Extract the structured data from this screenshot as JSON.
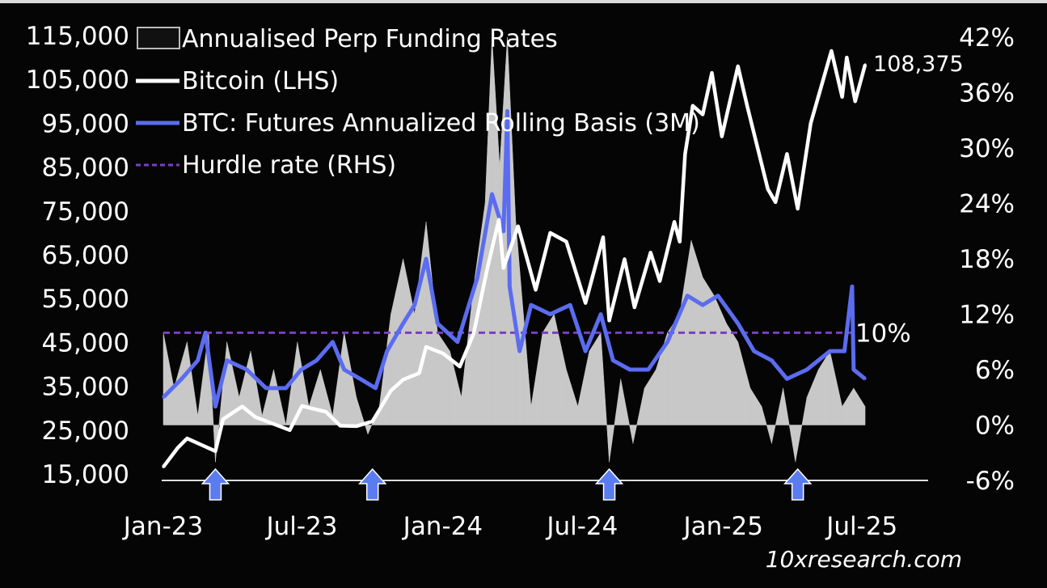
{
  "chart_data": {
    "type": "line",
    "title": "",
    "legend": {
      "placement": "top-left",
      "items": [
        {
          "label": "Annualised Perp Funding Rates",
          "color": "#c8c8c8",
          "style": "area"
        },
        {
          "label": "Bitcoin (LHS)",
          "color": "#ffffff",
          "style": "line"
        },
        {
          "label": "BTC: Futures Annualized Rolling Basis (3M)",
          "color": "#5b6cf0",
          "style": "line"
        },
        {
          "label": "Hurdle rate (RHS)",
          "color": "#7a3fc0",
          "style": "dashed"
        }
      ]
    },
    "x_ticks": [
      {
        "date": "2023-01-01",
        "label": "Jan-23"
      },
      {
        "date": "2023-07-01",
        "label": "Jul-23"
      },
      {
        "date": "2024-01-01",
        "label": "Jan-24"
      },
      {
        "date": "2024-07-01",
        "label": "Jul-24"
      },
      {
        "date": "2025-01-01",
        "label": "Jan-25"
      },
      {
        "date": "2025-07-01",
        "label": "Jul-25"
      }
    ],
    "y_left": {
      "ylim": [
        15000,
        115000
      ],
      "ticks": [
        "115,000",
        "105,000",
        "95,000",
        "85,000",
        "75,000",
        "65,000",
        "55,000",
        "45,000",
        "35,000",
        "25,000",
        "15,000"
      ]
    },
    "y_right": {
      "ylim": [
        -6,
        42
      ],
      "unit": "%",
      "ticks": [
        "42%",
        "36%",
        "30%",
        "24%",
        "18%",
        "12%",
        "6%",
        "0%",
        "-6%"
      ]
    },
    "grid": false,
    "series": [
      {
        "name": "Bitcoin (LHS)",
        "axis": "left",
        "color": "#ffffff",
        "points": [
          [
            "2023-01-01",
            16600
          ],
          [
            "2023-01-20",
            21000
          ],
          [
            "2023-02-01",
            23100
          ],
          [
            "2023-03-10",
            20200
          ],
          [
            "2023-03-20",
            27500
          ],
          [
            "2023-04-14",
            30400
          ],
          [
            "2023-05-01",
            28000
          ],
          [
            "2023-06-15",
            25000
          ],
          [
            "2023-07-01",
            30500
          ],
          [
            "2023-08-01",
            29200
          ],
          [
            "2023-08-20",
            26000
          ],
          [
            "2023-09-10",
            25900
          ],
          [
            "2023-10-01",
            27000
          ],
          [
            "2023-10-25",
            34000
          ],
          [
            "2023-11-10",
            36500
          ],
          [
            "2023-12-01",
            38000
          ],
          [
            "2023-12-10",
            44000
          ],
          [
            "2024-01-01",
            42500
          ],
          [
            "2024-01-23",
            39500
          ],
          [
            "2024-02-10",
            47000
          ],
          [
            "2024-02-28",
            62000
          ],
          [
            "2024-03-14",
            73000
          ],
          [
            "2024-03-20",
            62000
          ],
          [
            "2024-04-08",
            71500
          ],
          [
            "2024-05-01",
            57000
          ],
          [
            "2024-05-20",
            70000
          ],
          [
            "2024-06-10",
            68000
          ],
          [
            "2024-07-05",
            54000
          ],
          [
            "2024-07-28",
            69000
          ],
          [
            "2024-08-05",
            50000
          ],
          [
            "2024-08-25",
            64000
          ],
          [
            "2024-09-07",
            53000
          ],
          [
            "2024-09-28",
            65500
          ],
          [
            "2024-10-10",
            59000
          ],
          [
            "2024-10-29",
            72500
          ],
          [
            "2024-11-05",
            68000
          ],
          [
            "2024-11-12",
            88000
          ],
          [
            "2024-11-22",
            99000
          ],
          [
            "2024-12-05",
            97000
          ],
          [
            "2024-12-17",
            106500
          ],
          [
            "2024-12-30",
            92000
          ],
          [
            "2025-01-20",
            108000
          ],
          [
            "2025-02-01",
            99000
          ],
          [
            "2025-02-28",
            80000
          ],
          [
            "2025-03-10",
            77000
          ],
          [
            "2025-03-25",
            88000
          ],
          [
            "2025-04-08",
            75500
          ],
          [
            "2025-04-25",
            95000
          ],
          [
            "2025-05-22",
            111500
          ],
          [
            "2025-06-05",
            101000
          ],
          [
            "2025-06-11",
            110000
          ],
          [
            "2025-06-22",
            100000
          ],
          [
            "2025-07-05",
            108375
          ]
        ],
        "last_label": "108,375"
      },
      {
        "name": "BTC: Futures Annualized Rolling Basis (3M)",
        "axis": "right",
        "color": "#5b6cf0",
        "points": [
          [
            "2023-01-01",
            3
          ],
          [
            "2023-01-25",
            5
          ],
          [
            "2023-02-15",
            7
          ],
          [
            "2023-02-25",
            10
          ],
          [
            "2023-03-10",
            2
          ],
          [
            "2023-03-25",
            7
          ],
          [
            "2023-04-20",
            6
          ],
          [
            "2023-05-15",
            4
          ],
          [
            "2023-06-10",
            4
          ],
          [
            "2023-06-30",
            6
          ],
          [
            "2023-07-20",
            7
          ],
          [
            "2023-08-10",
            9
          ],
          [
            "2023-08-25",
            6
          ],
          [
            "2023-09-15",
            5
          ],
          [
            "2023-10-05",
            4
          ],
          [
            "2023-10-20",
            8
          ],
          [
            "2023-11-10",
            11
          ],
          [
            "2023-11-25",
            13
          ],
          [
            "2023-12-10",
            18
          ],
          [
            "2023-12-25",
            11
          ],
          [
            "2024-01-20",
            9
          ],
          [
            "2024-02-15",
            16
          ],
          [
            "2024-03-05",
            25
          ],
          [
            "2024-03-20",
            21
          ],
          [
            "2024-03-25",
            34
          ],
          [
            "2024-03-28",
            15
          ],
          [
            "2024-04-10",
            8
          ],
          [
            "2024-04-25",
            13
          ],
          [
            "2024-05-20",
            12
          ],
          [
            "2024-06-15",
            13
          ],
          [
            "2024-07-05",
            8
          ],
          [
            "2024-07-25",
            12
          ],
          [
            "2024-08-10",
            7
          ],
          [
            "2024-09-01",
            6
          ],
          [
            "2024-09-25",
            6
          ],
          [
            "2024-10-20",
            9
          ],
          [
            "2024-11-15",
            14
          ],
          [
            "2024-12-05",
            13
          ],
          [
            "2024-12-25",
            14
          ],
          [
            "2025-01-20",
            11
          ],
          [
            "2025-02-10",
            8
          ],
          [
            "2025-03-05",
            7
          ],
          [
            "2025-03-25",
            5
          ],
          [
            "2025-04-20",
            6
          ],
          [
            "2025-05-20",
            8
          ],
          [
            "2025-06-08",
            8
          ],
          [
            "2025-06-18",
            15
          ],
          [
            "2025-06-20",
            6
          ],
          [
            "2025-07-05",
            5
          ]
        ]
      },
      {
        "name": "Hurdle rate (RHS)",
        "axis": "right",
        "color": "#7a3fc0",
        "points": [
          [
            "2023-01-01",
            10
          ],
          [
            "2025-06-20",
            10
          ]
        ],
        "end_label": "10%"
      },
      {
        "name": "Annualised Perp Funding Rates",
        "axis": "right",
        "color": "#c8c8c8",
        "points": [
          [
            "2023-01-01",
            10
          ],
          [
            "2023-01-15",
            4
          ],
          [
            "2023-02-01",
            9
          ],
          [
            "2023-02-15",
            1
          ],
          [
            "2023-03-01",
            10
          ],
          [
            "2023-03-10",
            -4
          ],
          [
            "2023-03-25",
            9
          ],
          [
            "2023-04-10",
            3
          ],
          [
            "2023-04-25",
            8
          ],
          [
            "2023-05-10",
            1
          ],
          [
            "2023-05-25",
            6
          ],
          [
            "2023-06-10",
            0
          ],
          [
            "2023-06-25",
            9
          ],
          [
            "2023-07-10",
            2
          ],
          [
            "2023-07-25",
            6
          ],
          [
            "2023-08-10",
            1
          ],
          [
            "2023-08-25",
            10
          ],
          [
            "2023-09-10",
            3
          ],
          [
            "2023-09-25",
            -1
          ],
          [
            "2023-10-10",
            2
          ],
          [
            "2023-10-25",
            12
          ],
          [
            "2023-11-10",
            18
          ],
          [
            "2023-11-25",
            12
          ],
          [
            "2023-12-10",
            22
          ],
          [
            "2023-12-25",
            10
          ],
          [
            "2024-01-10",
            8
          ],
          [
            "2024-01-25",
            3
          ],
          [
            "2024-02-10",
            15
          ],
          [
            "2024-02-25",
            24
          ],
          [
            "2024-03-05",
            42
          ],
          [
            "2024-03-15",
            28
          ],
          [
            "2024-03-25",
            42
          ],
          [
            "2024-04-05",
            22
          ],
          [
            "2024-04-15",
            12
          ],
          [
            "2024-04-25",
            2
          ],
          [
            "2024-05-10",
            10
          ],
          [
            "2024-05-25",
            12
          ],
          [
            "2024-06-10",
            6
          ],
          [
            "2024-06-25",
            2
          ],
          [
            "2024-07-10",
            8
          ],
          [
            "2024-07-25",
            10
          ],
          [
            "2024-08-05",
            -4
          ],
          [
            "2024-08-20",
            5
          ],
          [
            "2024-09-05",
            -2
          ],
          [
            "2024-09-20",
            4
          ],
          [
            "2024-10-05",
            6
          ],
          [
            "2024-10-20",
            10
          ],
          [
            "2024-11-05",
            12
          ],
          [
            "2024-11-20",
            20
          ],
          [
            "2024-12-05",
            16
          ],
          [
            "2024-12-20",
            14
          ],
          [
            "2025-01-05",
            11
          ],
          [
            "2025-01-20",
            9
          ],
          [
            "2025-02-05",
            4
          ],
          [
            "2025-02-20",
            2
          ],
          [
            "2025-03-05",
            -2
          ],
          [
            "2025-03-20",
            4
          ],
          [
            "2025-04-05",
            -4
          ],
          [
            "2025-04-20",
            3
          ],
          [
            "2025-05-05",
            6
          ],
          [
            "2025-05-20",
            8
          ],
          [
            "2025-06-05",
            2
          ],
          [
            "2025-06-20",
            4
          ],
          [
            "2025-07-05",
            2
          ]
        ]
      }
    ],
    "annotations": {
      "arrows_up": [
        "2023-03-10",
        "2023-10-01",
        "2024-08-05",
        "2025-04-08"
      ],
      "color": "#5b7cf0"
    }
  },
  "watermark": "10xresearch.com"
}
